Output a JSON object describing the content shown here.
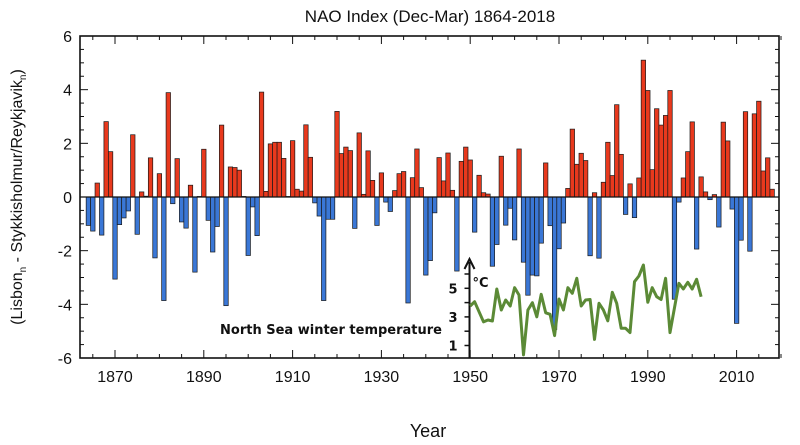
{
  "chart_data": [
    {
      "type": "bar",
      "title": "NAO Index (Dec-Mar) 1864-2018",
      "xlabel": "Year",
      "ylabel_parts": [
        "(Lisbon",
        "n",
        " - Stykkisholmur/Reykjavik",
        "n",
        ")"
      ],
      "xlim": [
        1862,
        2021
      ],
      "ylim": [
        -6,
        6
      ],
      "xticks": [
        "1870",
        "1890",
        "1910",
        "1930",
        "1950",
        "1970",
        "1990",
        "2010"
      ],
      "yticks": [
        "-6",
        "-4",
        "-2",
        "0",
        "2",
        "4",
        "6"
      ],
      "grid": false,
      "colors": {
        "positive": "#e8391d",
        "negative": "#3a77d6",
        "outline": "#1a1a1a"
      },
      "years_start": 1864,
      "values": [
        -1.06,
        -1.27,
        0.52,
        -1.42,
        2.81,
        1.69,
        -3.06,
        -1.03,
        -0.78,
        -0.52,
        2.32,
        -1.39,
        0.19,
        0.03,
        1.46,
        -2.27,
        0.87,
        -3.86,
        3.89,
        -0.25,
        1.43,
        -0.93,
        -1.16,
        0.44,
        -2.8,
        0.02,
        1.78,
        -0.87,
        -2.05,
        -1.1,
        2.68,
        -4.05,
        1.12,
        1.1,
        1.0,
        0.02,
        -2.18,
        -0.37,
        -1.44,
        3.91,
        0.21,
        1.98,
        2.04,
        2.04,
        1.44,
        0.02,
        2.1,
        0.29,
        0.22,
        2.69,
        1.48,
        -0.22,
        -0.71,
        -3.86,
        -0.83,
        -0.83,
        3.19,
        1.62,
        1.86,
        1.73,
        -1.17,
        2.39,
        0.1,
        1.72,
        0.62,
        -1.06,
        0.9,
        -0.19,
        -0.54,
        0.24,
        0.87,
        0.95,
        -3.95,
        0.72,
        1.79,
        0.35,
        -2.91,
        -2.37,
        -0.59,
        1.47,
        0.6,
        1.64,
        0.25,
        -2.76,
        1.33,
        1.86,
        1.38,
        -1.31,
        0.81,
        0.16,
        0.11,
        -2.58,
        -1.77,
        1.52,
        -1.05,
        -0.42,
        -1.6,
        1.79,
        -2.43,
        -3.66,
        -2.91,
        -2.94,
        -1.72,
        1.27,
        -1.07,
        -4.94,
        -1.93,
        -0.97,
        0.32,
        2.53,
        1.22,
        1.63,
        1.36,
        -2.19,
        0.16,
        -2.28,
        0.55,
        2.04,
        0.8,
        3.44,
        1.59,
        -0.65,
        0.49,
        -0.77,
        0.71,
        5.1,
        3.97,
        1.02,
        3.29,
        2.68,
        3.04,
        3.97,
        -3.81,
        -0.19,
        0.71,
        1.69,
        2.8,
        -1.94,
        0.75,
        0.19,
        -0.1,
        0.09,
        -1.12,
        2.79,
        2.09,
        -0.45,
        -4.71,
        -1.61,
        3.18,
        -2.02,
        3.1,
        3.57,
        0.97,
        1.46,
        0.29
      ]
    },
    {
      "type": "line",
      "annotation": "North Sea winter temperature",
      "unit": "°C",
      "yticks": [
        "5",
        "3",
        "1"
      ],
      "ylim": [
        0,
        6.5
      ],
      "color": "#5b8a36",
      "x": [
        1950,
        1951,
        1953,
        1954,
        1955,
        1956,
        1957,
        1958,
        1959,
        1960,
        1961,
        1962,
        1963,
        1964,
        1965,
        1966,
        1967,
        1968,
        1969,
        1970,
        1971,
        1972,
        1973,
        1974,
        1975,
        1976,
        1977,
        1978,
        1979,
        1980,
        1981,
        1982,
        1983,
        1984,
        1985,
        1986,
        1987,
        1988,
        1989,
        1990,
        1991,
        1992,
        1993,
        1994,
        1995,
        1997,
        1998,
        1999,
        2000,
        2001,
        2002
      ],
      "y": [
        3.76,
        4.06,
        2.66,
        2.78,
        2.71,
        4.95,
        3.48,
        4.18,
        3.76,
        5.04,
        4.53,
        0.34,
        3.48,
        3.99,
        3.01,
        4.58,
        3.29,
        3.18,
        1.69,
        4.25,
        3.48,
        5.04,
        4.65,
        5.7,
        3.76,
        4.18,
        4.22,
        1.43,
        3.95,
        3.48,
        2.73,
        4.72,
        3.95,
        2.2,
        2.2,
        1.9,
        5.46,
        5.86,
        6.63,
        4.02,
        5.04,
        4.41,
        4.22,
        5.7,
        1.9,
        5.35,
        4.95,
        5.42,
        4.95,
        5.63,
        4.41
      ]
    }
  ]
}
